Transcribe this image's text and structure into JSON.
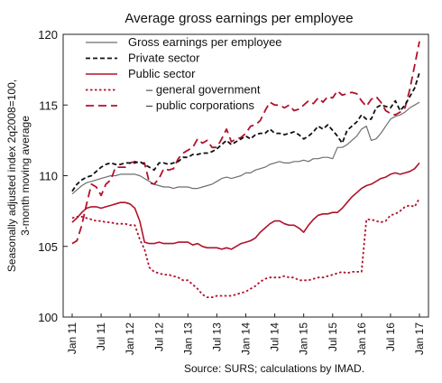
{
  "chart_data": {
    "type": "line",
    "title": "Average gross earnings per employee",
    "ylabel": "Seasonally adjusted index 2q2008=100, 3-month moving average",
    "xlabel": "",
    "source": "Source: SURS; calculations by IMAD.",
    "ylim": [
      100,
      120
    ],
    "yticks": [
      100,
      105,
      110,
      115,
      120
    ],
    "x_start": "Jan 11",
    "x_end": "Jan 17",
    "xticks": [
      "Jan 11",
      "Jul 11",
      "Jan 12",
      "Jul 12",
      "Jan 13",
      "Jul 13",
      "Jan 14",
      "Jul 14",
      "Jan 15",
      "Jul 15",
      "Jan 16",
      "Jul 16",
      "Jan 17"
    ],
    "grid": false,
    "legend_position": "top-left",
    "x": [
      "Jan 11",
      "Feb 11",
      "Mar 11",
      "Apr 11",
      "May 11",
      "Jun 11",
      "Jul 11",
      "Aug 11",
      "Sep 11",
      "Oct 11",
      "Nov 11",
      "Dec 11",
      "Jan 12",
      "Feb 12",
      "Mar 12",
      "Apr 12",
      "May 12",
      "Jun 12",
      "Jul 12",
      "Aug 12",
      "Sep 12",
      "Oct 12",
      "Nov 12",
      "Dec 12",
      "Jan 13",
      "Feb 13",
      "Mar 13",
      "Apr 13",
      "May 13",
      "Jun 13",
      "Jul 13",
      "Aug 13",
      "Sep 13",
      "Oct 13",
      "Nov 13",
      "Dec 13",
      "Jan 14",
      "Feb 14",
      "Mar 14",
      "Apr 14",
      "May 14",
      "Jun 14",
      "Jul 14",
      "Aug 14",
      "Sep 14",
      "Oct 14",
      "Nov 14",
      "Dec 14",
      "Jan 15",
      "Feb 15",
      "Mar 15",
      "Apr 15",
      "May 15",
      "Jun 15",
      "Jul 15",
      "Aug 15",
      "Sep 15",
      "Oct 15",
      "Nov 15",
      "Dec 15",
      "Jan 16",
      "Feb 16",
      "Mar 16",
      "Apr 16",
      "May 16",
      "Jun 16",
      "Jul 16",
      "Aug 16",
      "Sep 16",
      "Oct 16",
      "Nov 16",
      "Dec 16",
      "Jan 17"
    ],
    "series": [
      {
        "name": "Gross earnings per employee",
        "color": "#6e6e6e",
        "dash": "solid",
        "values": [
          108.7,
          109.0,
          109.3,
          109.5,
          109.6,
          109.7,
          109.8,
          109.9,
          110.0,
          110.0,
          110.1,
          110.1,
          110.1,
          110.1,
          110.0,
          109.8,
          109.6,
          109.4,
          109.3,
          109.2,
          109.2,
          109.1,
          109.2,
          109.2,
          109.2,
          109.1,
          109.1,
          109.2,
          109.3,
          109.4,
          109.6,
          109.8,
          109.9,
          109.8,
          109.9,
          110.0,
          110.2,
          110.2,
          110.4,
          110.5,
          110.6,
          110.8,
          110.9,
          111.0,
          110.9,
          110.9,
          111.0,
          111.0,
          111.1,
          111.0,
          111.2,
          111.2,
          111.3,
          111.3,
          111.2,
          112.0,
          112.0,
          112.2,
          112.5,
          112.8,
          113.3,
          113.5,
          112.5,
          112.6,
          113.0,
          113.5,
          114.0,
          114.2,
          114.3,
          114.5,
          114.8,
          115.0,
          115.2
        ]
      },
      {
        "name": "Private sector",
        "color": "#111111",
        "dash": "dash",
        "values": [
          108.9,
          109.4,
          109.7,
          109.9,
          110.0,
          110.3,
          110.6,
          110.8,
          110.9,
          110.8,
          110.8,
          110.9,
          110.9,
          110.9,
          111.0,
          110.8,
          110.6,
          110.4,
          110.9,
          110.9,
          110.8,
          110.9,
          111.0,
          111.3,
          111.3,
          111.5,
          111.5,
          111.6,
          111.6,
          111.7,
          111.9,
          112.2,
          112.5,
          112.2,
          112.4,
          112.6,
          112.8,
          112.6,
          112.9,
          113.0,
          113.0,
          113.3,
          113.0,
          113.0,
          112.9,
          113.0,
          113.1,
          112.9,
          112.6,
          112.8,
          113.1,
          113.5,
          113.3,
          113.6,
          113.2,
          112.8,
          112.3,
          113.2,
          113.5,
          113.8,
          114.3,
          114.0,
          114.0,
          114.8,
          115.0,
          114.9,
          114.8,
          115.3,
          114.6,
          115.0,
          115.6,
          116.2,
          117.3
        ]
      },
      {
        "name": "Public sector",
        "color": "#b0122b",
        "dash": "solid",
        "values": [
          106.7,
          107.0,
          107.4,
          107.7,
          107.8,
          107.8,
          107.7,
          107.8,
          107.9,
          108.0,
          108.1,
          108.1,
          108.0,
          107.7,
          106.8,
          105.3,
          105.2,
          105.2,
          105.3,
          105.2,
          105.2,
          105.2,
          105.3,
          105.3,
          105.3,
          105.1,
          105.2,
          105.0,
          104.9,
          104.9,
          104.9,
          104.8,
          104.9,
          104.8,
          105.0,
          105.2,
          105.3,
          105.4,
          105.6,
          106.0,
          106.3,
          106.6,
          106.8,
          106.8,
          106.6,
          106.5,
          106.5,
          106.3,
          106.0,
          106.5,
          106.9,
          107.2,
          107.3,
          107.3,
          107.4,
          107.4,
          107.7,
          108.1,
          108.5,
          108.8,
          109.1,
          109.3,
          109.4,
          109.6,
          109.8,
          109.9,
          110.1,
          110.2,
          110.1,
          110.2,
          110.3,
          110.5,
          110.9
        ]
      },
      {
        "name": "– general government",
        "color": "#b0122b",
        "dash": "dot",
        "values": [
          107.0,
          107.1,
          107.1,
          107.0,
          106.9,
          106.8,
          106.8,
          106.7,
          106.7,
          106.6,
          106.6,
          106.6,
          106.5,
          106.5,
          105.5,
          104.8,
          103.5,
          103.2,
          103.1,
          103.0,
          103.0,
          102.9,
          102.8,
          102.6,
          102.6,
          102.3,
          102.0,
          101.6,
          101.4,
          101.4,
          101.5,
          101.5,
          101.5,
          101.5,
          101.6,
          101.7,
          101.8,
          102.0,
          102.2,
          102.5,
          102.7,
          102.8,
          102.8,
          102.8,
          102.9,
          102.8,
          102.8,
          102.6,
          102.6,
          102.6,
          102.7,
          102.8,
          102.8,
          102.9,
          103.0,
          103.1,
          103.2,
          103.1,
          103.2,
          103.2,
          103.2,
          106.9,
          106.9,
          106.8,
          106.7,
          106.8,
          107.2,
          107.3,
          107.5,
          107.8,
          107.9,
          107.8,
          108.4
        ]
      },
      {
        "name": "– public corporations",
        "color": "#b0122b",
        "dash": "longdash",
        "values": [
          105.2,
          105.4,
          106.5,
          108.0,
          109.4,
          109.2,
          108.6,
          109.4,
          109.7,
          110.6,
          110.6,
          110.6,
          110.9,
          111.0,
          110.9,
          110.9,
          109.5,
          109.4,
          109.8,
          110.5,
          110.4,
          110.5,
          111.2,
          111.6,
          111.8,
          112.0,
          112.6,
          112.3,
          112.5,
          112.0,
          112.0,
          112.6,
          113.3,
          112.4,
          112.6,
          112.7,
          113.0,
          113.5,
          113.6,
          113.9,
          114.6,
          115.2,
          115.0,
          115.0,
          114.8,
          115.0,
          114.6,
          114.7,
          115.0,
          115.3,
          115.1,
          115.5,
          115.2,
          115.6,
          115.5,
          116.0,
          115.7,
          115.8,
          115.9,
          115.8,
          115.3,
          114.9,
          115.4,
          115.6,
          115.2,
          114.6,
          114.4,
          114.3,
          114.5,
          114.8,
          116.1,
          117.8,
          119.5
        ]
      }
    ]
  }
}
